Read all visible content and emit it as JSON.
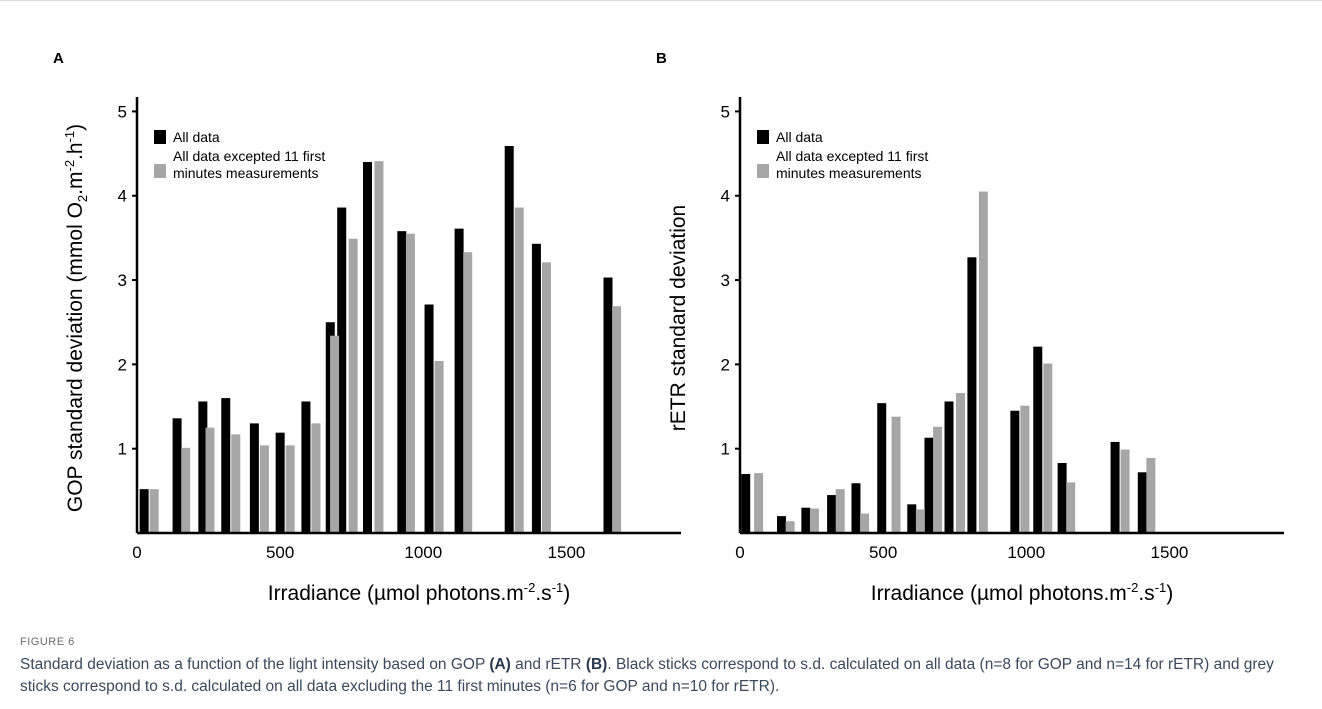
{
  "figure": {
    "label": "FIGURE 6",
    "caption_parts": [
      {
        "t": "Standard deviation as a function of the light intensity based on GOP ",
        "b": false
      },
      {
        "t": "(A)",
        "b": true
      },
      {
        "t": " and rETR ",
        "b": false
      },
      {
        "t": "(B)",
        "b": true
      },
      {
        "t": ". Black sticks correspond to s.d. calculated on all data (n=8 for GOP and n=14 for rETR) and grey sticks correspond to s.d. calculated on all data excluding the 11 first minutes (n=6 for GOP and n=10 for rETR).",
        "b": false
      }
    ]
  },
  "chart_data": [
    {
      "panel": "A",
      "type": "bar",
      "ylabel_main": "GOP standard deviation (mmol O",
      "ylabel_sub": "2",
      "ylabel_mid": ".m",
      "ylabel_sup1": "-2",
      "ylabel_mid2": ".h",
      "ylabel_sup2": "-1",
      "ylabel_end": ")",
      "xlabel_main": "Irradiance (µmol photons.m",
      "xlabel_sup1": "-2",
      "xlabel_mid": ".s",
      "xlabel_sup2": "-1",
      "xlabel_end": ")",
      "xlim": [
        0,
        1900
      ],
      "ylim": [
        0,
        5.1
      ],
      "xticks": [
        0,
        500,
        1000,
        1500
      ],
      "yticks": [
        1,
        2,
        3,
        4,
        5
      ],
      "legend": "top-left",
      "colors": {
        "all": "#000000",
        "excluded": "#a6a6a6"
      },
      "series": [
        {
          "name": "All data",
          "x": [
            25,
            140,
            230,
            310,
            410,
            500,
            590,
            675,
            715,
            805,
            925,
            1020,
            1125,
            1300,
            1395,
            1645
          ],
          "values": [
            0.52,
            1.36,
            1.56,
            1.6,
            1.3,
            1.19,
            1.56,
            2.5,
            3.86,
            4.4,
            3.58,
            2.71,
            3.61,
            4.59,
            3.43,
            3.03
          ]
        },
        {
          "name": "All data excepted 11 first minutes measurements",
          "x": [
            60,
            170,
            255,
            345,
            445,
            535,
            625,
            690,
            755,
            845,
            955,
            1055,
            1155,
            1335,
            1430,
            1675
          ],
          "values": [
            0.52,
            1.01,
            1.25,
            1.17,
            1.04,
            1.04,
            1.3,
            2.34,
            3.49,
            4.41,
            3.55,
            2.04,
            3.33,
            3.86,
            3.21,
            2.69
          ]
        }
      ]
    },
    {
      "panel": "B",
      "type": "bar",
      "ylabel_main": "rETR standard deviation",
      "xlabel_main": "Irradiance (µmol photons.m",
      "xlabel_sup1": "-2",
      "xlabel_mid": ".s",
      "xlabel_sup2": "-1",
      "xlabel_end": ")",
      "xlim": [
        0,
        1900
      ],
      "ylim": [
        0,
        5.1
      ],
      "xticks": [
        0,
        500,
        1000,
        1500
      ],
      "yticks": [
        1,
        2,
        3,
        4,
        5
      ],
      "legend": "top-left",
      "colors": {
        "all": "#000000",
        "excluded": "#a6a6a6"
      },
      "series": [
        {
          "name": "All data",
          "x": [
            20,
            145,
            230,
            320,
            405,
            495,
            600,
            660,
            730,
            810,
            960,
            1040,
            1125,
            1310,
            1405
          ],
          "values": [
            0.7,
            0.2,
            0.3,
            0.45,
            0.59,
            1.54,
            0.34,
            1.13,
            1.56,
            3.27,
            1.45,
            2.21,
            0.83,
            1.08,
            0.72
          ]
        },
        {
          "name": "All data excepted 11 first minutes measurements",
          "x": [
            65,
            175,
            260,
            350,
            435,
            545,
            630,
            690,
            770,
            850,
            995,
            1075,
            1155,
            1345,
            1435
          ],
          "values": [
            0.71,
            0.14,
            0.29,
            0.52,
            0.23,
            1.38,
            0.28,
            1.26,
            1.66,
            4.05,
            1.51,
            2.01,
            0.6,
            0.99,
            0.89
          ]
        }
      ]
    }
  ]
}
